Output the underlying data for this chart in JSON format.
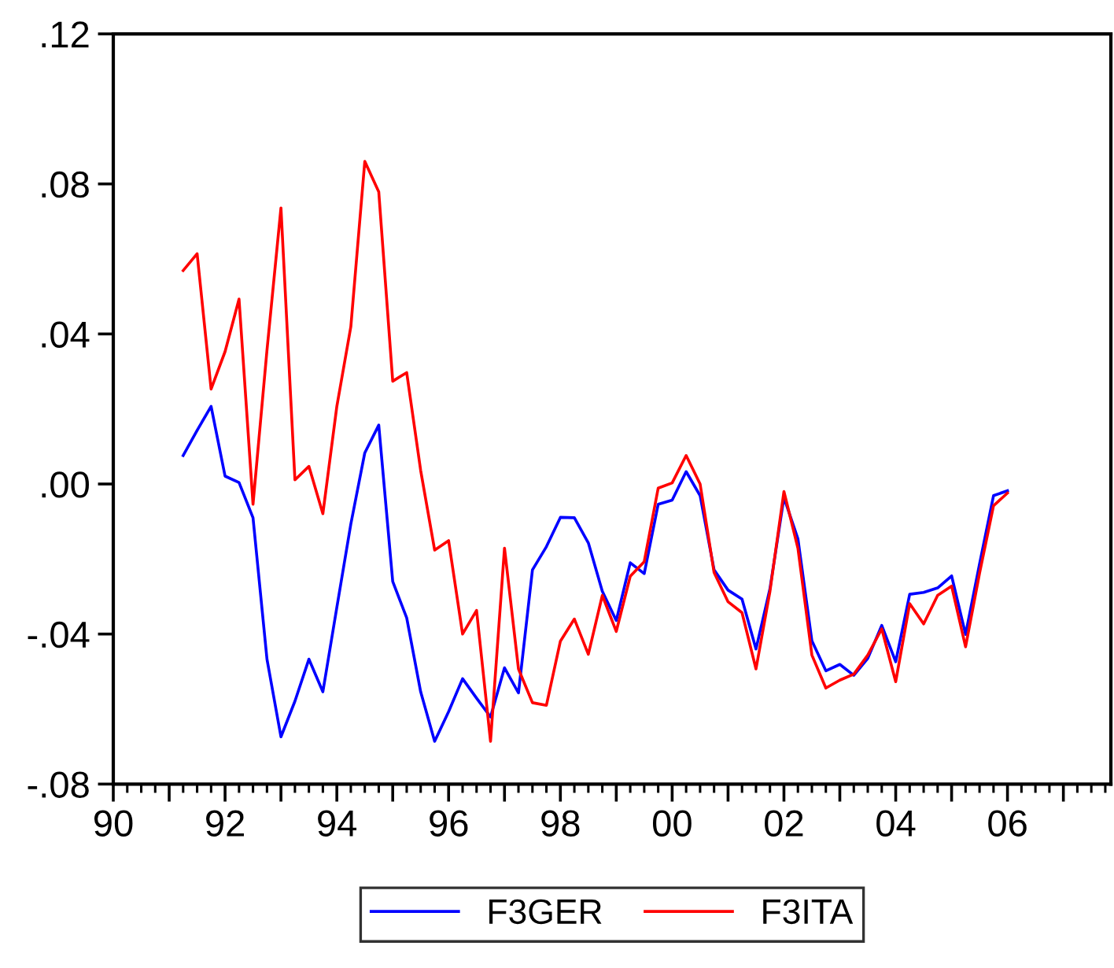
{
  "chart_data": {
    "type": "line",
    "x": [
      1991.25,
      1991.5,
      1991.75,
      1992.0,
      1992.25,
      1992.5,
      1992.75,
      1993.0,
      1993.25,
      1993.5,
      1993.75,
      1994.0,
      1994.25,
      1994.5,
      1994.75,
      1995.0,
      1995.25,
      1995.5,
      1995.75,
      1996.0,
      1996.25,
      1996.5,
      1996.75,
      1997.0,
      1997.25,
      1997.5,
      1997.75,
      1998.0,
      1998.25,
      1998.5,
      1998.75,
      1999.0,
      1999.25,
      1999.5,
      1999.75,
      2000.0,
      2000.25,
      2000.5,
      2000.75,
      2001.0,
      2001.25,
      2001.5,
      2001.75,
      2002.0,
      2002.25,
      2002.5,
      2002.75,
      2003.0,
      2003.25,
      2003.5,
      2003.75,
      2004.0,
      2004.25,
      2004.5,
      2004.75,
      2005.0,
      2005.25,
      2005.5,
      2005.75,
      2006.0
    ],
    "series": [
      {
        "name": "F3GER",
        "color": "#0000ff",
        "values": [
          0.0076,
          0.0143,
          0.0207,
          0.0021,
          0.0004,
          -0.009,
          -0.0467,
          -0.0674,
          -0.0579,
          -0.0467,
          -0.0554,
          -0.0329,
          -0.0107,
          0.0083,
          0.0157,
          -0.026,
          -0.0357,
          -0.0554,
          -0.0686,
          -0.0607,
          -0.0519,
          -0.0571,
          -0.0621,
          -0.049,
          -0.0557,
          -0.0229,
          -0.0167,
          -0.0089,
          -0.009,
          -0.0157,
          -0.0286,
          -0.0364,
          -0.021,
          -0.0239,
          -0.0054,
          -0.0043,
          0.0033,
          -0.0031,
          -0.0229,
          -0.0283,
          -0.0307,
          -0.044,
          -0.0279,
          -0.0036,
          -0.0146,
          -0.0418,
          -0.0498,
          -0.0481,
          -0.051,
          -0.0465,
          -0.0377,
          -0.0474,
          -0.0294,
          -0.0289,
          -0.0277,
          -0.0245,
          -0.0401,
          -0.0213,
          -0.0031,
          -0.0018
        ]
      },
      {
        "name": "F3ITA",
        "color": "#ff0000",
        "values": [
          0.0569,
          0.0614,
          0.0253,
          0.0353,
          0.0493,
          -0.0054,
          0.0357,
          0.0736,
          0.0011,
          0.0047,
          -0.0079,
          0.0207,
          0.0419,
          0.086,
          0.0779,
          0.0274,
          0.0297,
          0.0036,
          -0.0176,
          -0.0151,
          -0.04,
          -0.0337,
          -0.0686,
          -0.0171,
          -0.0493,
          -0.0583,
          -0.059,
          -0.0419,
          -0.036,
          -0.0454,
          -0.0297,
          -0.0393,
          -0.0246,
          -0.0207,
          -0.0011,
          0.0003,
          0.0076,
          0.0,
          -0.0236,
          -0.0314,
          -0.0343,
          -0.0493,
          -0.0286,
          -0.002,
          -0.0171,
          -0.0456,
          -0.0544,
          -0.0523,
          -0.0507,
          -0.0456,
          -0.0386,
          -0.0527,
          -0.0319,
          -0.0373,
          -0.0297,
          -0.0272,
          -0.0434,
          -0.0238,
          -0.0058,
          -0.0024
        ]
      }
    ],
    "xlim": [
      1990,
      2007.85
    ],
    "xticks": [
      {
        "value": 1990,
        "label": "90"
      },
      {
        "value": 1991,
        "label": null
      },
      {
        "value": 1992,
        "label": "92"
      },
      {
        "value": 1993,
        "label": null
      },
      {
        "value": 1994,
        "label": "94"
      },
      {
        "value": 1995,
        "label": null
      },
      {
        "value": 1996,
        "label": "96"
      },
      {
        "value": 1997,
        "label": null
      },
      {
        "value": 1998,
        "label": "98"
      },
      {
        "value": 1999,
        "label": null
      },
      {
        "value": 2000,
        "label": "00"
      },
      {
        "value": 2001,
        "label": null
      },
      {
        "value": 2002,
        "label": "02"
      },
      {
        "value": 2003,
        "label": null
      },
      {
        "value": 2004,
        "label": "04"
      },
      {
        "value": 2005,
        "label": null
      },
      {
        "value": 2006,
        "label": "06"
      },
      {
        "value": 2007,
        "label": null
      }
    ],
    "ylim": [
      -0.08,
      0.12
    ],
    "yticks": [
      {
        "value": -0.08,
        "label": "-.08"
      },
      {
        "value": -0.04,
        "label": "-.04"
      },
      {
        "value": 0.0,
        "label": ".00"
      },
      {
        "value": 0.04,
        "label": ".04"
      },
      {
        "value": 0.08,
        "label": ".08"
      },
      {
        "value": 0.12,
        "label": ".12"
      }
    ],
    "grid": false,
    "legend": "bottom",
    "line_style": "solid",
    "marker": "none"
  }
}
